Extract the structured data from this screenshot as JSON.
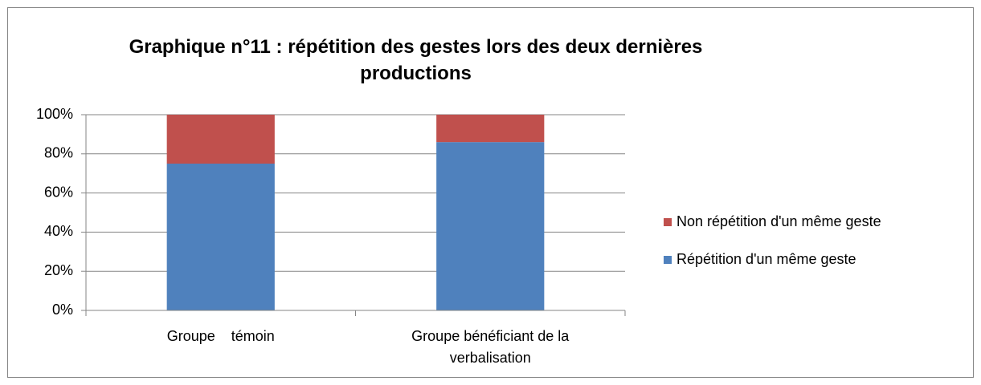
{
  "chart_data": {
    "type": "stacked_bar",
    "title": "Graphique n°11 : répétition des gestes lors des deux dernières productions",
    "categories": [
      "Groupe    témoin",
      "Groupe bénéficiant de la verbalisation"
    ],
    "series": [
      {
        "name": "Répétition d'un même geste",
        "color": "#4f81bd",
        "values": [
          75,
          86
        ]
      },
      {
        "name": "Non répétition d'un même geste",
        "color": "#c0504d",
        "values": [
          25,
          14
        ]
      }
    ],
    "ylim": [
      0,
      100
    ],
    "yticks": [
      {
        "value": 0,
        "label": "0%"
      },
      {
        "value": 20,
        "label": "20%"
      },
      {
        "value": 40,
        "label": "40%"
      },
      {
        "value": 60,
        "label": "60%"
      },
      {
        "value": 80,
        "label": "80%"
      },
      {
        "value": 100,
        "label": "100%"
      }
    ],
    "grid": true,
    "legend": "right"
  }
}
